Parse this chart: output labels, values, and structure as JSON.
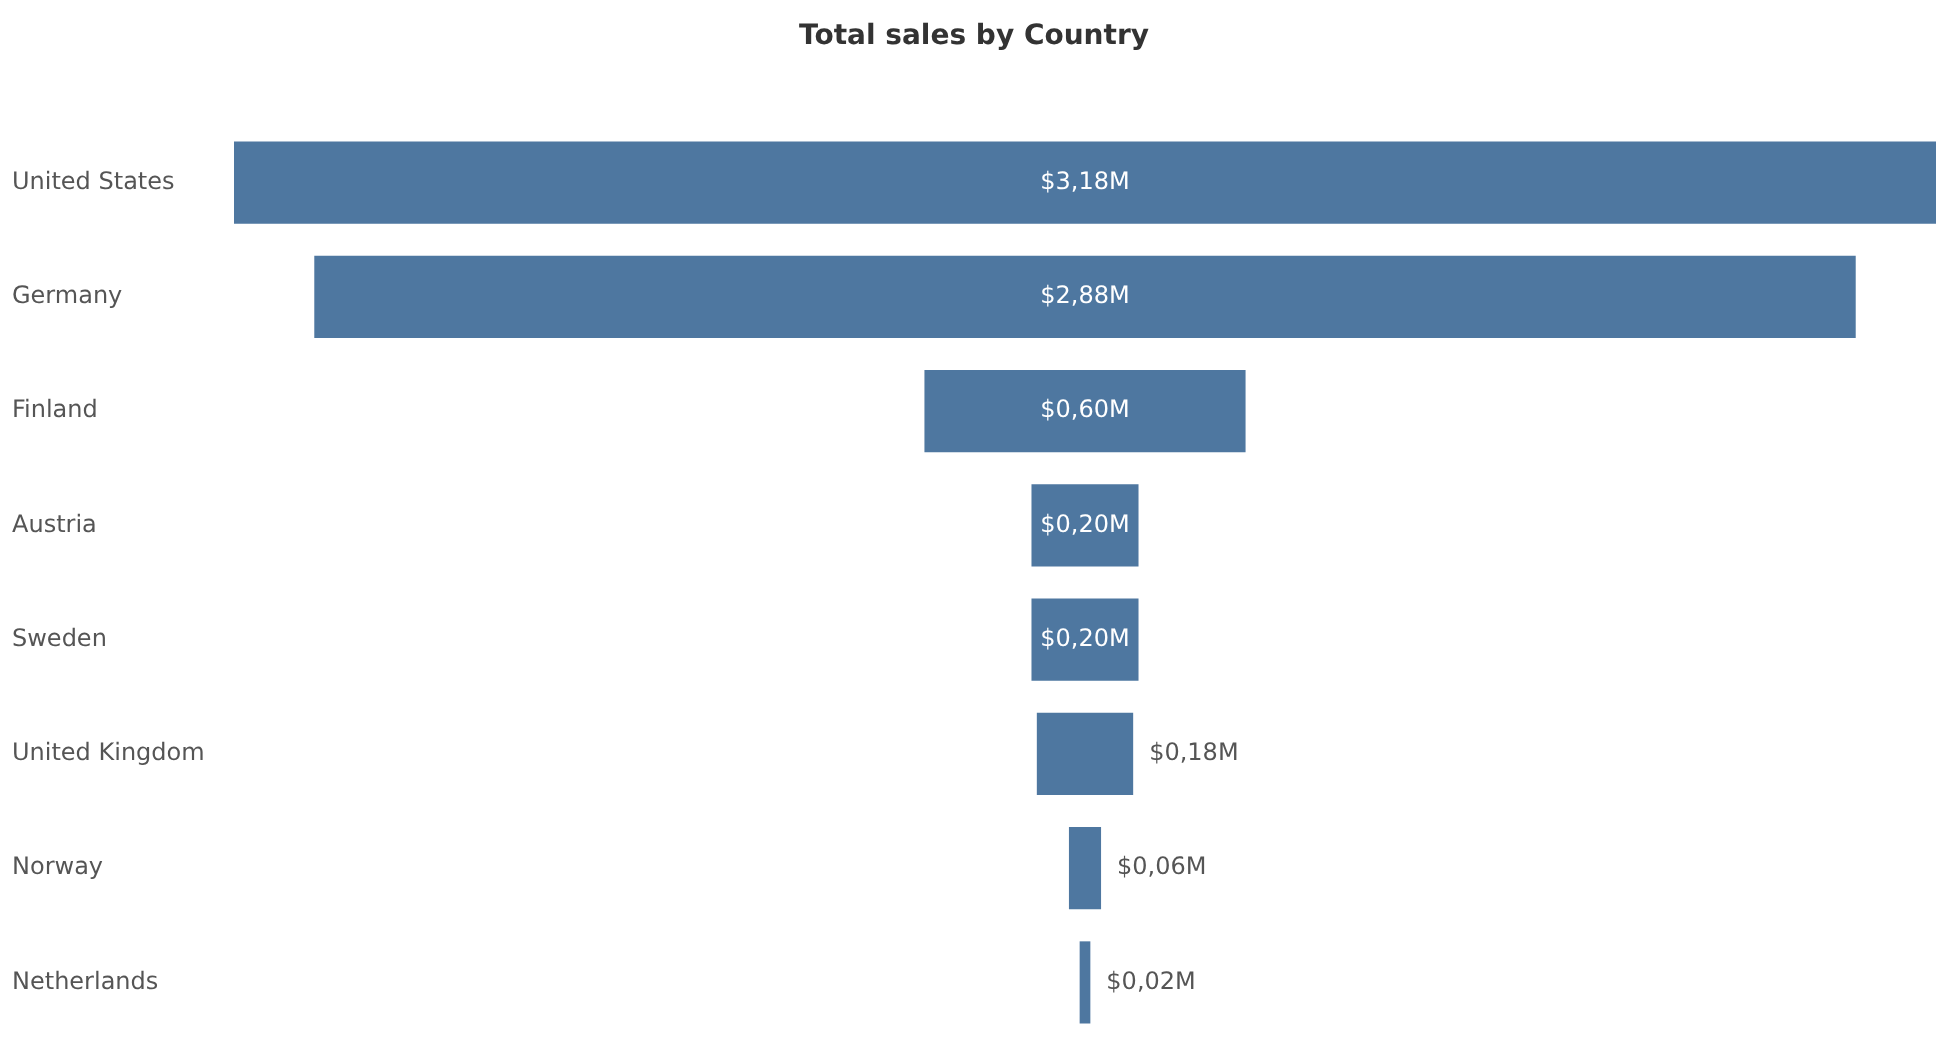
{
  "chart_data": {
    "type": "other",
    "title": "Total sales by Country",
    "categories": [
      "United States",
      "Germany",
      "Finland",
      "Austria",
      "Sweden",
      "United Kingdom",
      "Norway",
      "Netherlands"
    ],
    "values": [
      3.18,
      2.88,
      0.6,
      0.2,
      0.2,
      0.18,
      0.06,
      0.02
    ],
    "value_labels": [
      "$3,18M",
      "$2,88M",
      "$0,60M",
      "$0,20M",
      "$0,20M",
      "$0,18M",
      "$0,06M",
      "$0,02M"
    ],
    "color": "#4e77a0"
  }
}
